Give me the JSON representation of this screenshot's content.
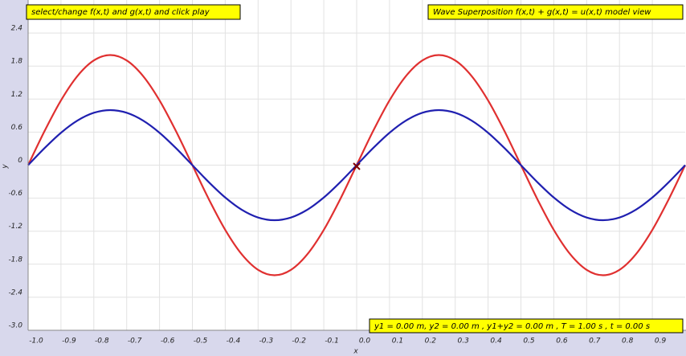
{
  "chart_data": {
    "type": "line",
    "instruction": "select/change f(x,t) and g(x,t) and click play",
    "title": "Wave Superposition f(x,t) + g(x,t) = u(x,t) model view",
    "status": "y1 = 0.00 m, y2 = 0.00 m , y1+y2 = 0.00 m , T = 1.00 s , t = 0.00 s",
    "xlabel": "x",
    "ylabel": "y",
    "xlim": [
      -1,
      1
    ],
    "ylim": [
      -3,
      3
    ],
    "xticks": [
      {
        "value": -1,
        "label": "-1.0"
      },
      -0.9,
      -0.8,
      -0.7,
      -0.6,
      -0.5,
      -0.4,
      -0.3,
      -0.2,
      -0.1,
      {
        "value": 0,
        "label": "0.0"
      },
      0.1,
      0.2,
      0.3,
      0.4,
      0.5,
      0.6,
      0.7,
      0.8,
      0.9
    ],
    "yticks": [
      {
        "value": -3,
        "label": "-3.0"
      },
      -2.4,
      -1.8,
      -1.2,
      -0.6,
      0,
      0.6,
      1.2,
      1.8,
      2.4
    ],
    "grid": true,
    "x": [
      -1,
      -0.95,
      -0.9,
      -0.85,
      -0.8,
      -0.75,
      -0.7,
      -0.65,
      -0.6,
      -0.55,
      -0.5,
      -0.45,
      -0.4,
      -0.35,
      -0.3,
      -0.25,
      -0.2,
      -0.15,
      -0.1,
      -0.05,
      0,
      0.05,
      0.1,
      0.15,
      0.2,
      0.25,
      0.3,
      0.35,
      0.4,
      0.45,
      0.5,
      0.55,
      0.6,
      0.65,
      0.7,
      0.75,
      0.8,
      0.85,
      0.9,
      0.95,
      1
    ],
    "series": [
      {
        "color": "#e03030",
        "values": [
          0,
          0.618,
          1.176,
          1.618,
          1.902,
          2,
          1.902,
          1.618,
          1.176,
          0.618,
          0,
          -0.618,
          -1.176,
          -1.618,
          -1.902,
          -2,
          -1.902,
          -1.618,
          -1.176,
          -0.618,
          0,
          0.618,
          1.176,
          1.618,
          1.902,
          2,
          1.902,
          1.618,
          1.176,
          0.618,
          0,
          -0.618,
          -1.176,
          -1.618,
          -1.902,
          -2,
          -1.902,
          -1.618,
          -1.176,
          -0.618,
          0
        ]
      },
      {
        "color": "#2020b0",
        "values": [
          0,
          0.309,
          0.588,
          0.809,
          0.951,
          1,
          0.951,
          0.809,
          0.588,
          0.309,
          0,
          -0.309,
          -0.588,
          -0.809,
          -0.951,
          -1,
          -0.951,
          -0.809,
          -0.588,
          -0.309,
          0,
          0.309,
          0.588,
          0.809,
          0.951,
          1,
          0.951,
          0.809,
          0.588,
          0.309,
          0,
          -0.309,
          -0.588,
          -0.809,
          -0.951,
          -1,
          -0.951,
          -0.809,
          -0.588,
          -0.309,
          0
        ]
      }
    ]
  }
}
